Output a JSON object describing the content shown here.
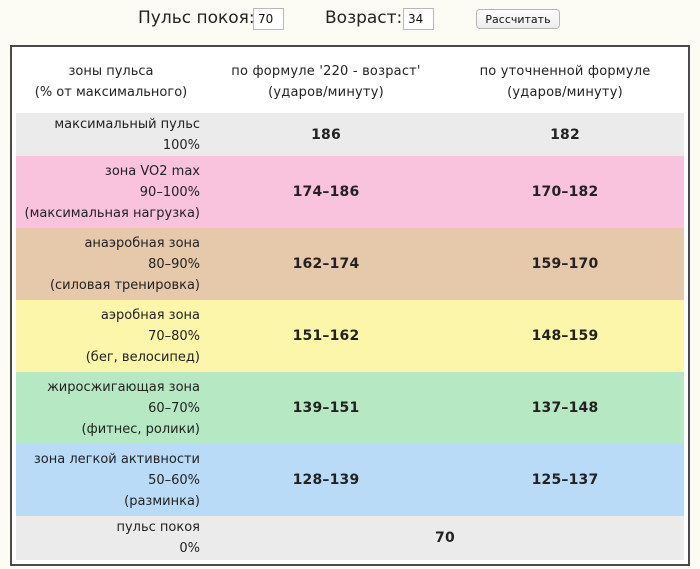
{
  "form": {
    "pulse_label": "Пульс покоя:",
    "pulse_value": "70",
    "age_label": "Возраст:",
    "age_value": "34",
    "calc_button": "Рассчитать"
  },
  "table": {
    "header": {
      "col1_line1": "зоны пульса",
      "col1_line2": "(% от максимального)",
      "col2_line1": "по формуле '220 - возраст'",
      "col2_line2": "(ударов/минуту)",
      "col3_line1": "по уточненной формуле",
      "col3_line2": "(ударов/минуту)"
    },
    "rows": [
      {
        "line1": "максимальный пульс",
        "line2": "100%",
        "line3": "",
        "formula1": "186",
        "formula2": "182",
        "color": "#ebebeb"
      },
      {
        "line1": "зона VO2 max",
        "line2": "90–100%",
        "line3": "(максимальная нагрузка)",
        "formula1": "174–186",
        "formula2": "170–182",
        "color": "#f9c2dd"
      },
      {
        "line1": "анаэробная зона",
        "line2": "80–90%",
        "line3": "(силовая тренировка)",
        "formula1": "162–174",
        "formula2": "159–170",
        "color": "#e6c8ab"
      },
      {
        "line1": "аэробная зона",
        "line2": "70–80%",
        "line3": "(бег, велосипед)",
        "formula1": "151–162",
        "formula2": "148–159",
        "color": "#fbf6aa"
      },
      {
        "line1": "жиросжигающая зона",
        "line2": "60–70%",
        "line3": "(фитнес, ролики)",
        "formula1": "139–151",
        "formula2": "137–148",
        "color": "#b6e8c3"
      },
      {
        "line1": "зона легкой активности",
        "line2": "50–60%",
        "line3": "(разминка)",
        "formula1": "128–139",
        "formula2": "125–137",
        "color": "#b9dbf8"
      }
    ],
    "resting": {
      "line1": "пульс покоя",
      "line2": "0%",
      "value": "70",
      "color": "#ebebeb"
    }
  }
}
